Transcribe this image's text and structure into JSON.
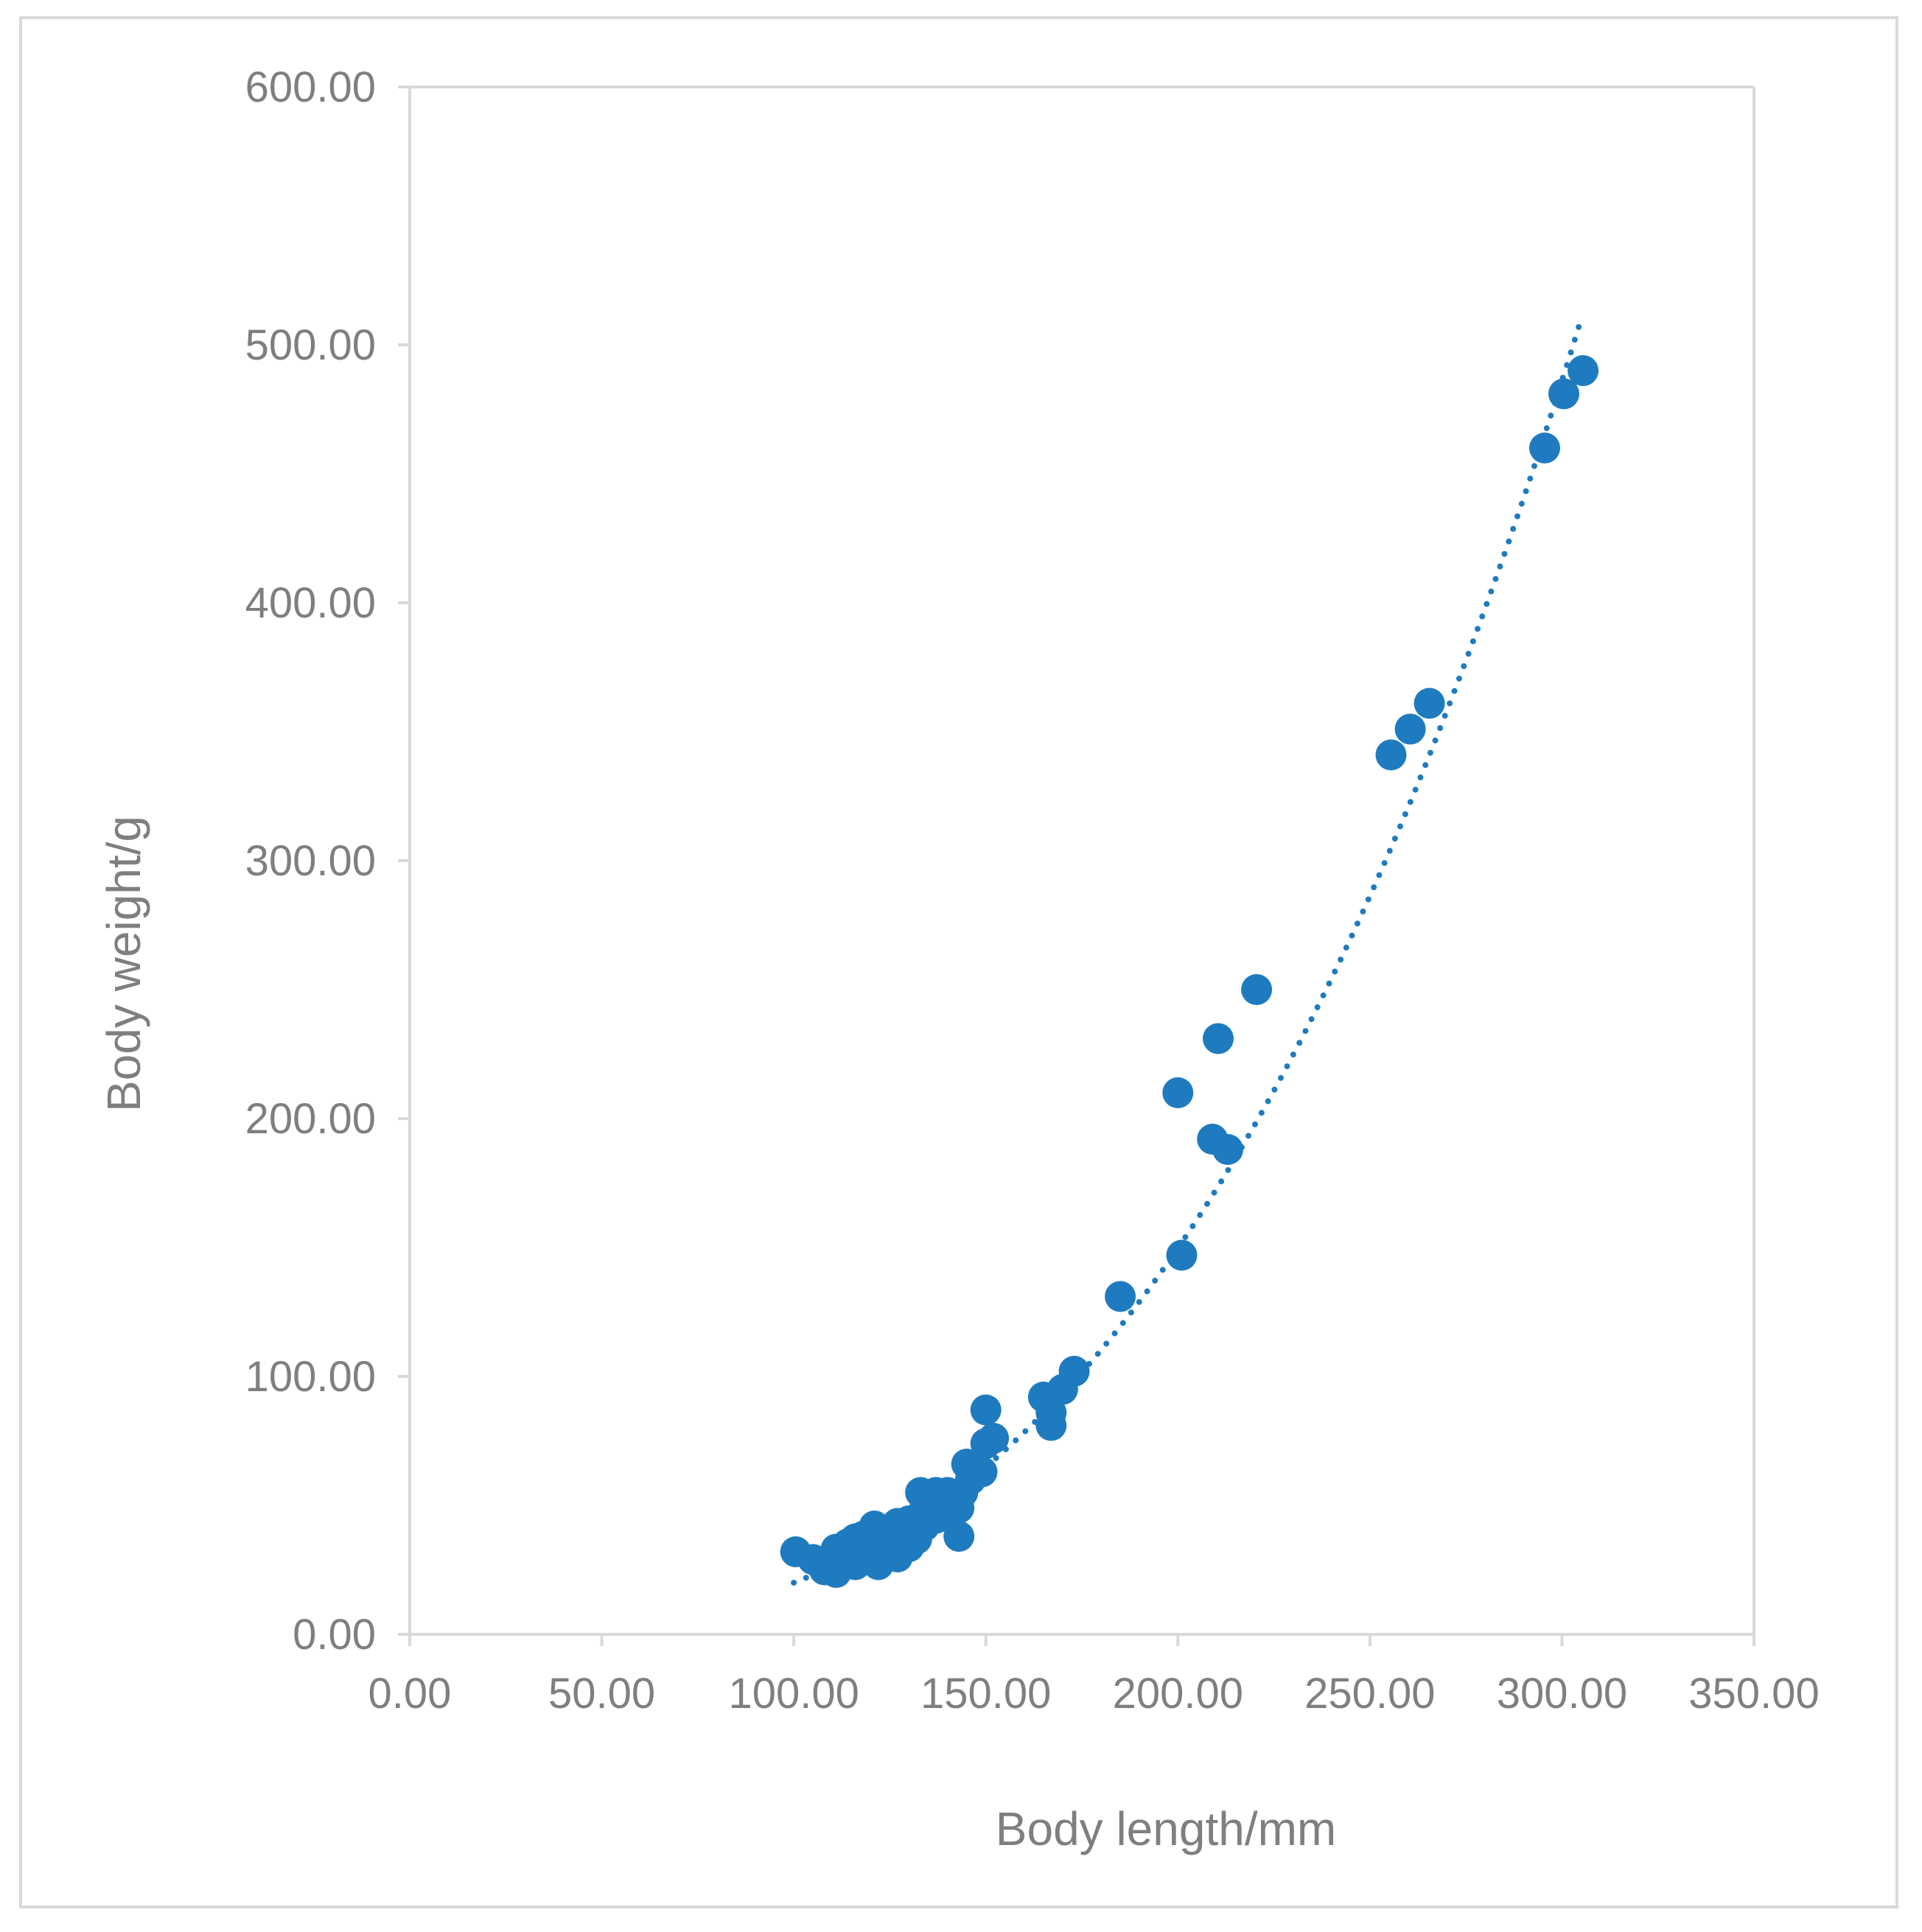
{
  "chart_data": {
    "type": "scatter",
    "title": "",
    "xlabel": "Body length/mm",
    "ylabel": "Body weight/g",
    "xlim": [
      0,
      350
    ],
    "ylim": [
      0,
      600
    ],
    "x_ticks": [
      "0.00",
      "50.00",
      "100.00",
      "150.00",
      "200.00",
      "250.00",
      "300.00",
      "350.00"
    ],
    "y_ticks": [
      "0.00",
      "100.00",
      "200.00",
      "300.00",
      "400.00",
      "500.00",
      "600.00"
    ],
    "x_tick_values": [
      0,
      50,
      100,
      150,
      200,
      250,
      300,
      350
    ],
    "y_tick_values": [
      0,
      100,
      200,
      300,
      400,
      500,
      600
    ],
    "grid": false,
    "legend": "none",
    "colors": {
      "marker": "#1f7bbf",
      "axis": "#d9d9d9",
      "text": "#7f7f7f"
    },
    "trendline": {
      "style": "dotted",
      "type": "power",
      "x_range": [
        100,
        305
      ],
      "y_range": [
        20,
        510
      ]
    },
    "series": [
      {
        "points": [
          [
            100.5,
            32
          ],
          [
            105,
            29
          ],
          [
            108,
            25
          ],
          [
            110,
            28
          ],
          [
            111,
            33
          ],
          [
            111,
            24
          ],
          [
            112,
            27
          ],
          [
            113,
            30
          ],
          [
            114,
            35
          ],
          [
            115,
            31
          ],
          [
            116,
            37
          ],
          [
            116,
            27
          ],
          [
            117,
            33
          ],
          [
            118,
            38
          ],
          [
            119,
            29
          ],
          [
            119,
            35
          ],
          [
            120,
            32
          ],
          [
            121,
            37
          ],
          [
            121,
            42
          ],
          [
            122,
            30
          ],
          [
            122,
            27
          ],
          [
            123,
            34
          ],
          [
            124,
            39
          ],
          [
            125,
            32
          ],
          [
            125,
            36
          ],
          [
            126,
            41
          ],
          [
            127,
            30
          ],
          [
            127,
            43
          ],
          [
            128,
            36
          ],
          [
            129,
            39
          ],
          [
            130,
            34
          ],
          [
            130,
            44
          ],
          [
            131,
            41
          ],
          [
            132,
            37
          ],
          [
            133,
            46
          ],
          [
            133,
            55
          ],
          [
            134,
            42
          ],
          [
            135,
            48
          ],
          [
            136,
            51
          ],
          [
            137,
            45
          ],
          [
            137,
            55
          ],
          [
            138,
            47
          ],
          [
            139,
            53
          ],
          [
            140,
            50
          ],
          [
            140,
            55
          ],
          [
            141,
            46
          ],
          [
            142,
            51
          ],
          [
            143,
            38
          ],
          [
            143,
            49
          ],
          [
            144,
            55
          ],
          [
            145,
            66
          ],
          [
            146,
            60
          ],
          [
            149,
            63
          ],
          [
            150,
            87
          ],
          [
            150,
            74
          ],
          [
            152,
            76
          ],
          [
            165,
            92
          ],
          [
            167,
            81
          ],
          [
            167,
            86
          ],
          [
            170,
            95
          ],
          [
            173,
            102
          ],
          [
            185,
            131
          ],
          [
            200,
            210
          ],
          [
            201,
            147
          ],
          [
            209,
            192
          ],
          [
            210.5,
            231
          ],
          [
            213,
            188
          ],
          [
            220.5,
            250
          ],
          [
            255.5,
            341
          ],
          [
            260.5,
            351
          ],
          [
            265.5,
            361
          ],
          [
            295.5,
            460
          ],
          [
            300.5,
            481
          ],
          [
            305.5,
            490
          ]
        ]
      }
    ]
  }
}
